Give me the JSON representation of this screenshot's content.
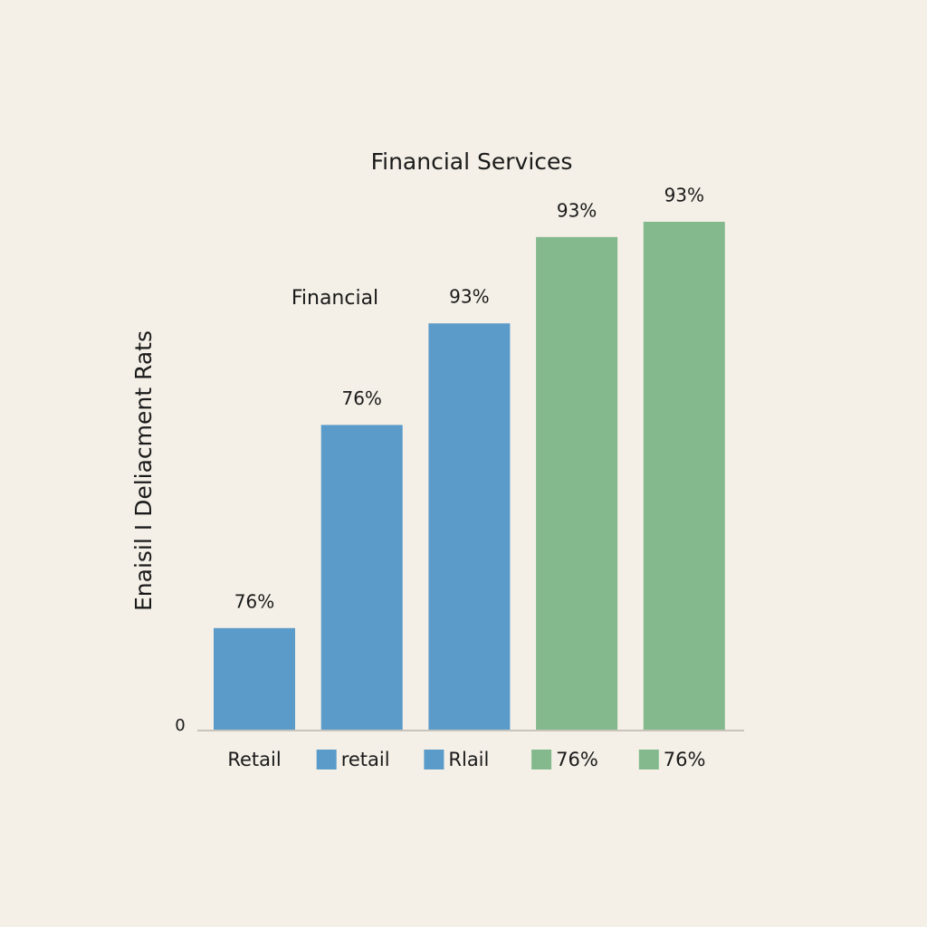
{
  "chart_data": {
    "type": "bar",
    "title": "Financial Services",
    "y_label": "Enaisil I Deliacment Rats",
    "annotations": [
      "Financial",
      "76%",
      "76%",
      "93%",
      "93%",
      "93%"
    ],
    "categories": [
      "Retail",
      "retail",
      "Rlail",
      "76%",
      "76%"
    ],
    "values": [
      20,
      60,
      80,
      97,
      100
    ],
    "colors": [
      "#5b9bc9",
      "#5b9bc9",
      "#5b9bc9",
      "#84b98d",
      "#84b98d"
    ],
    "ylim": [
      0,
      100
    ],
    "yticks": [
      0
    ]
  }
}
